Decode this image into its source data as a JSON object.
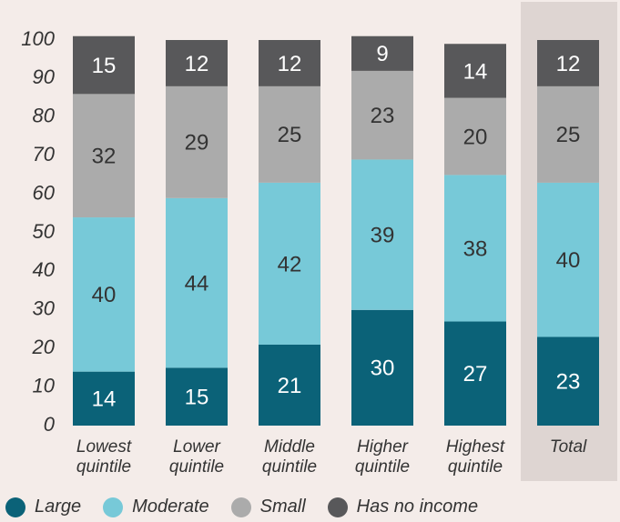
{
  "chart_data": {
    "type": "stacked_bar",
    "categories": [
      "Lowest quintile",
      "Lower quintile",
      "Middle quintile",
      "Higher quintile",
      "Highest quintile",
      "Total"
    ],
    "series": [
      {
        "name": "Large",
        "color": "#0b6278",
        "values": [
          14,
          15,
          21,
          30,
          27,
          23
        ]
      },
      {
        "name": "Moderate",
        "color": "#77c9d8",
        "values": [
          40,
          44,
          42,
          39,
          38,
          40
        ]
      },
      {
        "name": "Small",
        "color": "#ababab",
        "values": [
          32,
          29,
          25,
          23,
          20,
          25
        ]
      },
      {
        "name": "Has no income",
        "color": "#58585a",
        "values": [
          15,
          12,
          12,
          9,
          14,
          12
        ]
      }
    ],
    "ylim": [
      0,
      100
    ],
    "yticks": [
      0,
      10,
      20,
      30,
      40,
      50,
      60,
      70,
      80,
      90,
      100
    ],
    "legend": "bottom"
  }
}
